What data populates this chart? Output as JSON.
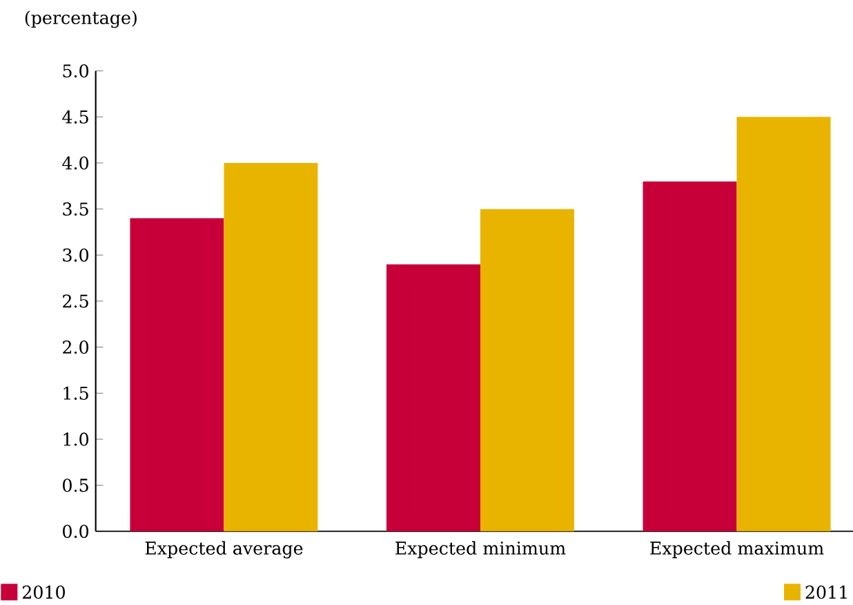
{
  "chart_data": {
    "type": "bar",
    "ylabel": "(percentage)",
    "categories": [
      "Expected average",
      "Expected minimum",
      "Expected maximum"
    ],
    "series": [
      {
        "name": "2010",
        "color": "#c8003a",
        "values": [
          3.4,
          2.9,
          3.8
        ]
      },
      {
        "name": "2011",
        "color": "#e9b400",
        "values": [
          4.0,
          3.5,
          4.5
        ]
      }
    ],
    "ylim": [
      0,
      5
    ],
    "yticks": [
      {
        "value": 0,
        "label": "0.0"
      },
      {
        "value": 0.5,
        "label": "0.5"
      },
      {
        "value": 1,
        "label": "1.0"
      },
      {
        "value": 1.5,
        "label": "1.5"
      },
      {
        "value": 2,
        "label": "2.0"
      },
      {
        "value": 2.5,
        "label": "2.5"
      },
      {
        "value": 3,
        "label": "3.0"
      },
      {
        "value": 3.5,
        "label": "3.5"
      },
      {
        "value": 4,
        "label": "4.0"
      },
      {
        "value": 4.5,
        "label": "4.5"
      },
      {
        "value": 5,
        "label": "5.0"
      }
    ],
    "legend": "bottom"
  }
}
